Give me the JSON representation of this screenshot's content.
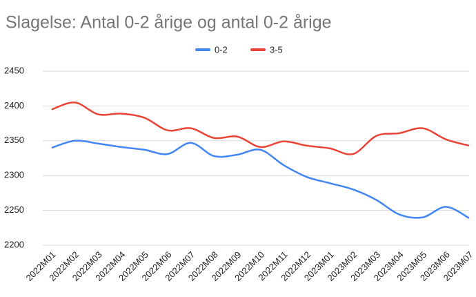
{
  "chart_data": {
    "type": "line",
    "title": "Slagelse: Antal 0-2 årige og antal 0-2 årige",
    "categories": [
      "2022M01",
      "2022M02",
      "2022M03",
      "2022M04",
      "2022M05",
      "2022M06",
      "2022M07",
      "2022M08",
      "2022M09",
      "2022M10",
      "2022M11",
      "2022M12",
      "2023M01",
      "2023M02",
      "2023M03",
      "2023M04",
      "2023M05",
      "2023M06",
      "2023M07"
    ],
    "series": [
      {
        "name": "0-2",
        "color": "#4285f4",
        "values": [
          2340,
          2350,
          2346,
          2341,
          2337,
          2331,
          2347,
          2328,
          2330,
          2337,
          2315,
          2298,
          2289,
          2280,
          2265,
          2244,
          2240,
          2255,
          2239
        ]
      },
      {
        "name": "3-5",
        "color": "#ea4335",
        "values": [
          2395,
          2405,
          2388,
          2389,
          2383,
          2365,
          2368,
          2354,
          2356,
          2341,
          2349,
          2343,
          2339,
          2331,
          2357,
          2361,
          2368,
          2352,
          2343
        ]
      }
    ],
    "ylim": [
      2200,
      2450
    ],
    "yticks": [
      2200,
      2250,
      2300,
      2350,
      2400,
      2450
    ],
    "grid": true,
    "legend": "top"
  }
}
